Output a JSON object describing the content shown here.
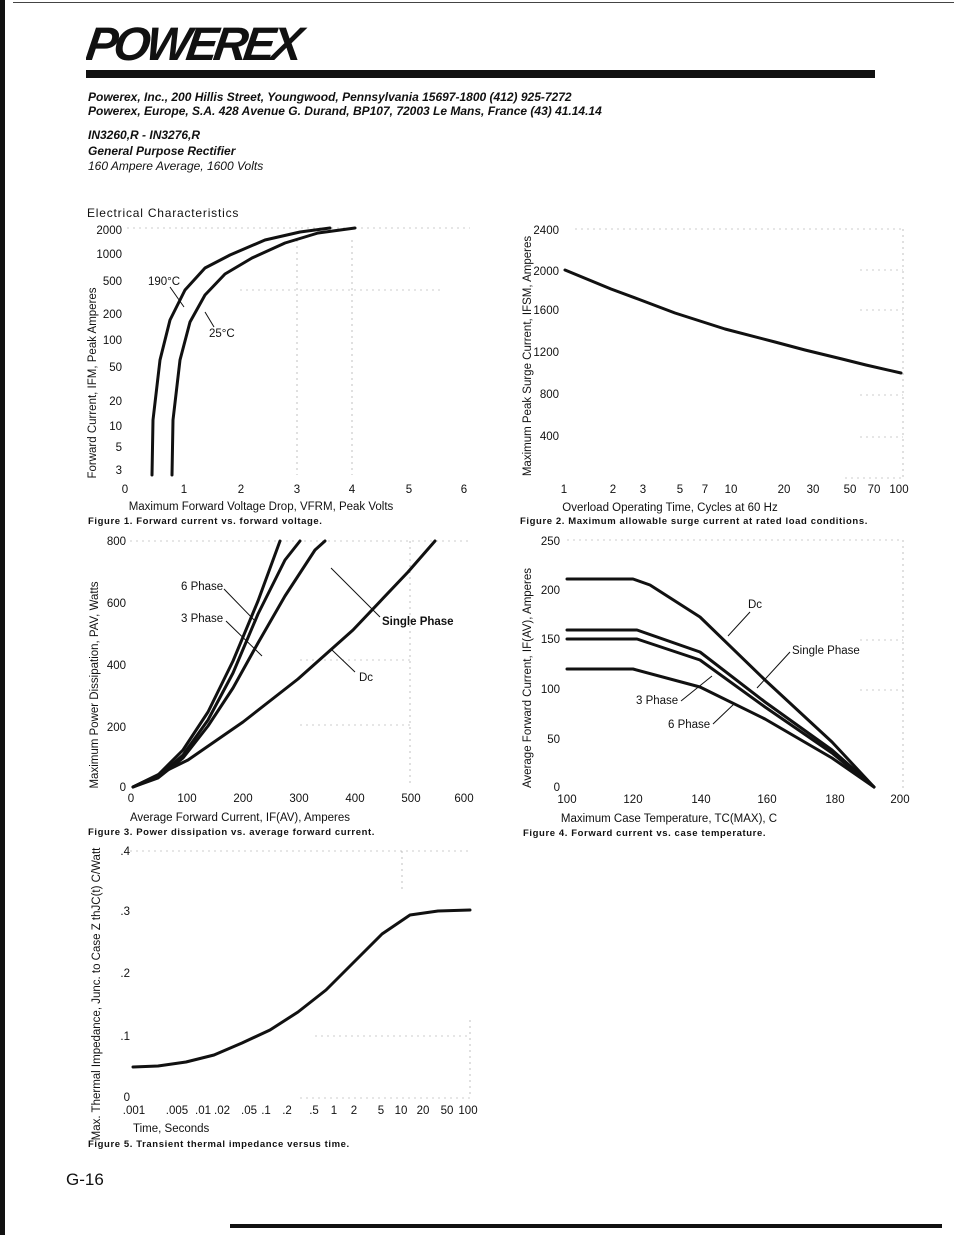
{
  "brand": {
    "logo_text": "POWEREX"
  },
  "header": {
    "address_us": "Powerex, Inc., 200 Hillis Street, Youngwood, Pennsylvania 15697-1800 (412) 925-7272",
    "address_eu": "Powerex, Europe, S.A. 428 Avenue G. Durand, BP107, 72003 Le Mans, France (43) 41.14.14",
    "part_numbers": "IN3260,R - IN3276,R",
    "part_type": "General Purpose Rectifier",
    "part_rating": "160 Ampere Average, 1600 Volts"
  },
  "section_title": "Electrical Characteristics",
  "page_number": "G-16",
  "chart_data": [
    {
      "id": "fig1",
      "type": "line",
      "caption": "Figure 1.  Forward current vs. forward voltage.",
      "xlabel": "Maximum Forward Voltage Drop, VFRM, Peak Volts",
      "ylabel": "Forward Current, IFM, Peak Amperes",
      "x_ticks": [
        "0",
        "1",
        "2",
        "3",
        "4",
        "5",
        "6"
      ],
      "y_ticks": [
        "2000",
        "1000",
        "500",
        "200",
        "100",
        "50",
        "20",
        "10",
        "5",
        "3"
      ],
      "xlim": [
        0,
        6
      ],
      "ylim": [
        3,
        2000
      ],
      "yscale": "log",
      "annotations": [
        "190°C",
        "25°C"
      ],
      "series": [
        {
          "name": "190°C",
          "x": [
            0.5,
            0.52,
            0.6,
            0.75,
            0.95,
            1.25,
            1.7,
            2.3,
            3.0,
            3.5
          ],
          "y": [
            3,
            10,
            30,
            80,
            200,
            500,
            1000,
            1500,
            1900,
            2000
          ]
        },
        {
          "name": "25°C",
          "x": [
            0.82,
            0.84,
            0.92,
            1.05,
            1.25,
            1.55,
            2.0,
            2.6,
            3.3,
            3.8
          ],
          "y": [
            3,
            10,
            30,
            80,
            200,
            500,
            1000,
            1500,
            1900,
            2000
          ]
        }
      ]
    },
    {
      "id": "fig2",
      "type": "line",
      "caption": "Figure 2.  Maximum allowable surge current at rated load conditions.",
      "xlabel": "Overload Operating Time, Cycles at 60 Hz",
      "ylabel": "Maximum Peak Surge Current, IFSM, Amperes",
      "x_ticks": [
        "1",
        "2",
        "3",
        "5",
        "7",
        "10",
        "20",
        "30",
        "50",
        "70",
        "100"
      ],
      "y_ticks": [
        "2400",
        "2000",
        "1600",
        "1200",
        "800",
        "400"
      ],
      "xlim": [
        1,
        100
      ],
      "ylim": [
        0,
        2400
      ],
      "xscale": "log",
      "series": [
        {
          "name": "",
          "x": [
            1,
            2,
            3,
            5,
            7,
            10,
            20,
            30,
            50,
            70,
            100
          ],
          "y": [
            2000,
            1800,
            1700,
            1560,
            1480,
            1410,
            1280,
            1220,
            1130,
            1080,
            1020
          ]
        }
      ]
    },
    {
      "id": "fig3",
      "type": "line",
      "caption": "Figure 3.  Power dissipation vs. average forward current.",
      "xlabel": "Average Forward Current, IF(AV), Amperes",
      "ylabel": "Maximum Power Dissipation, PAV, Watts",
      "x_ticks": [
        "0",
        "100",
        "200",
        "300",
        "400",
        "500",
        "600"
      ],
      "y_ticks": [
        "800",
        "600",
        "400",
        "200",
        "0"
      ],
      "xlim": [
        0,
        600
      ],
      "ylim": [
        0,
        800
      ],
      "series": [
        {
          "name": "6 Phase",
          "x": [
            0,
            50,
            100,
            150,
            200,
            250,
            280
          ],
          "y": [
            0,
            60,
            160,
            310,
            500,
            720,
            800
          ]
        },
        {
          "name": "3 Phase",
          "x": [
            0,
            50,
            100,
            150,
            200,
            250,
            300,
            340
          ],
          "y": [
            0,
            45,
            120,
            235,
            380,
            560,
            740,
            800
          ]
        },
        {
          "name": "Single Phase",
          "x": [
            0,
            50,
            100,
            150,
            200,
            250,
            300,
            350,
            390
          ],
          "y": [
            0,
            40,
            105,
            200,
            320,
            460,
            620,
            780,
            800
          ]
        },
        {
          "name": "Dc",
          "x": [
            0,
            100,
            200,
            300,
            400,
            500,
            540
          ],
          "y": [
            0,
            90,
            210,
            350,
            520,
            720,
            800
          ]
        }
      ]
    },
    {
      "id": "fig4",
      "type": "line",
      "caption": "Figure 4.  Forward current vs. case temperature.",
      "xlabel": "Maximum Case Temperature, TC(MAX), C",
      "ylabel": "Average Forward Current, IF(AV), Amperes",
      "x_ticks": [
        "100",
        "120",
        "140",
        "160",
        "180",
        "200"
      ],
      "y_ticks": [
        "250",
        "200",
        "150",
        "100",
        "50",
        "0"
      ],
      "xlim": [
        100,
        200
      ],
      "ylim": [
        0,
        250
      ],
      "series": [
        {
          "name": "Dc",
          "x": [
            100,
            120,
            125,
            140,
            160,
            180,
            193
          ],
          "y": [
            202,
            202,
            197,
            160,
            95,
            35,
            0
          ]
        },
        {
          "name": "Single Phase",
          "x": [
            100,
            122,
            140,
            160,
            180,
            193
          ],
          "y": [
            160,
            160,
            140,
            90,
            38,
            0
          ]
        },
        {
          "name": "3 Phase",
          "x": [
            100,
            122,
            140,
            160,
            180,
            193
          ],
          "y": [
            150,
            150,
            130,
            85,
            35,
            0
          ]
        },
        {
          "name": "6 Phase",
          "x": [
            100,
            120,
            140,
            160,
            180,
            193
          ],
          "y": [
            120,
            120,
            102,
            70,
            30,
            0
          ]
        }
      ]
    },
    {
      "id": "fig5",
      "type": "line",
      "caption": "Figure 5.  Transient thermal impedance versus time.",
      "xlabel": "Time,  Seconds",
      "ylabel": "Max. Thermal Impedance, Junc. to Case Z thJC(t) C/Watt",
      "x_ticks": [
        ".001",
        ".005",
        ".01",
        ".02",
        ".05",
        ".1",
        ".2",
        ".5",
        "1",
        "2",
        "5",
        "10",
        "20",
        "50",
        "100"
      ],
      "y_ticks": [
        ".4",
        ".3",
        ".2",
        ".1",
        "0"
      ],
      "xlim": [
        0.001,
        100
      ],
      "ylim": [
        0,
        0.4
      ],
      "xscale": "log",
      "series": [
        {
          "name": "",
          "x": [
            0.001,
            0.003,
            0.01,
            0.03,
            0.1,
            0.3,
            1,
            3,
            10,
            30,
            100
          ],
          "y": [
            0.045,
            0.05,
            0.065,
            0.09,
            0.125,
            0.165,
            0.215,
            0.265,
            0.295,
            0.302,
            0.303
          ]
        }
      ]
    }
  ]
}
